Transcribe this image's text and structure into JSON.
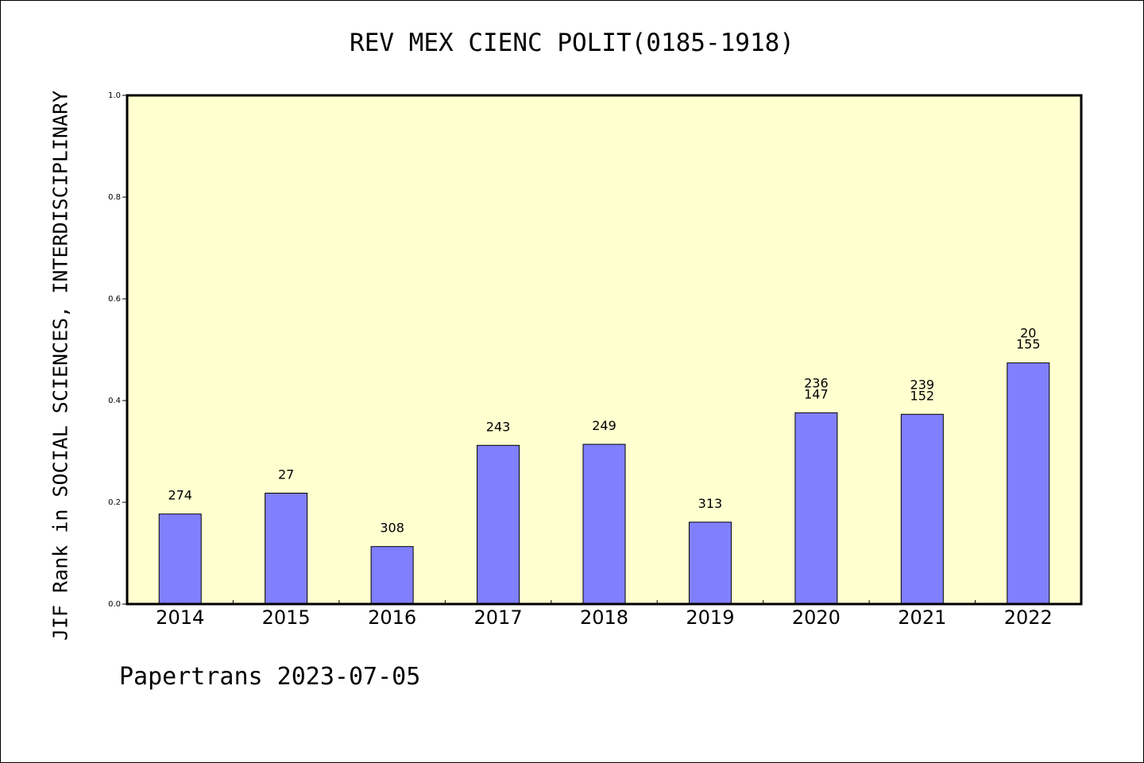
{
  "chart_data": {
    "type": "bar",
    "title": "REV MEX CIENC POLIT(0185-1918)",
    "ylabel": "JIF Rank in SOCIAL SCIENCES, INTERDISCIPLINARY",
    "xlabel": "",
    "ylim": [
      0,
      1.0
    ],
    "yticks": [
      "0.0",
      "0.2",
      "0.4",
      "0.6",
      "0.8",
      "1.0"
    ],
    "categories": [
      "2014",
      "2015",
      "2016",
      "2017",
      "2018",
      "2019",
      "2020",
      "2021",
      "2022"
    ],
    "values": [
      0.177,
      0.218,
      0.113,
      0.312,
      0.314,
      0.161,
      0.376,
      0.373,
      0.474
    ],
    "labels": [
      [
        "274"
      ],
      [
        "27"
      ],
      [
        "308"
      ],
      [
        "243"
      ],
      [
        "249"
      ],
      [
        "313"
      ],
      [
        "236",
        "147"
      ],
      [
        "239",
        "152"
      ],
      [
        "20",
        "155"
      ]
    ],
    "bar_color": "#8080ff",
    "background_color": "#ffffd0",
    "grid": false
  },
  "footer": "Papertrans 2023-07-05"
}
